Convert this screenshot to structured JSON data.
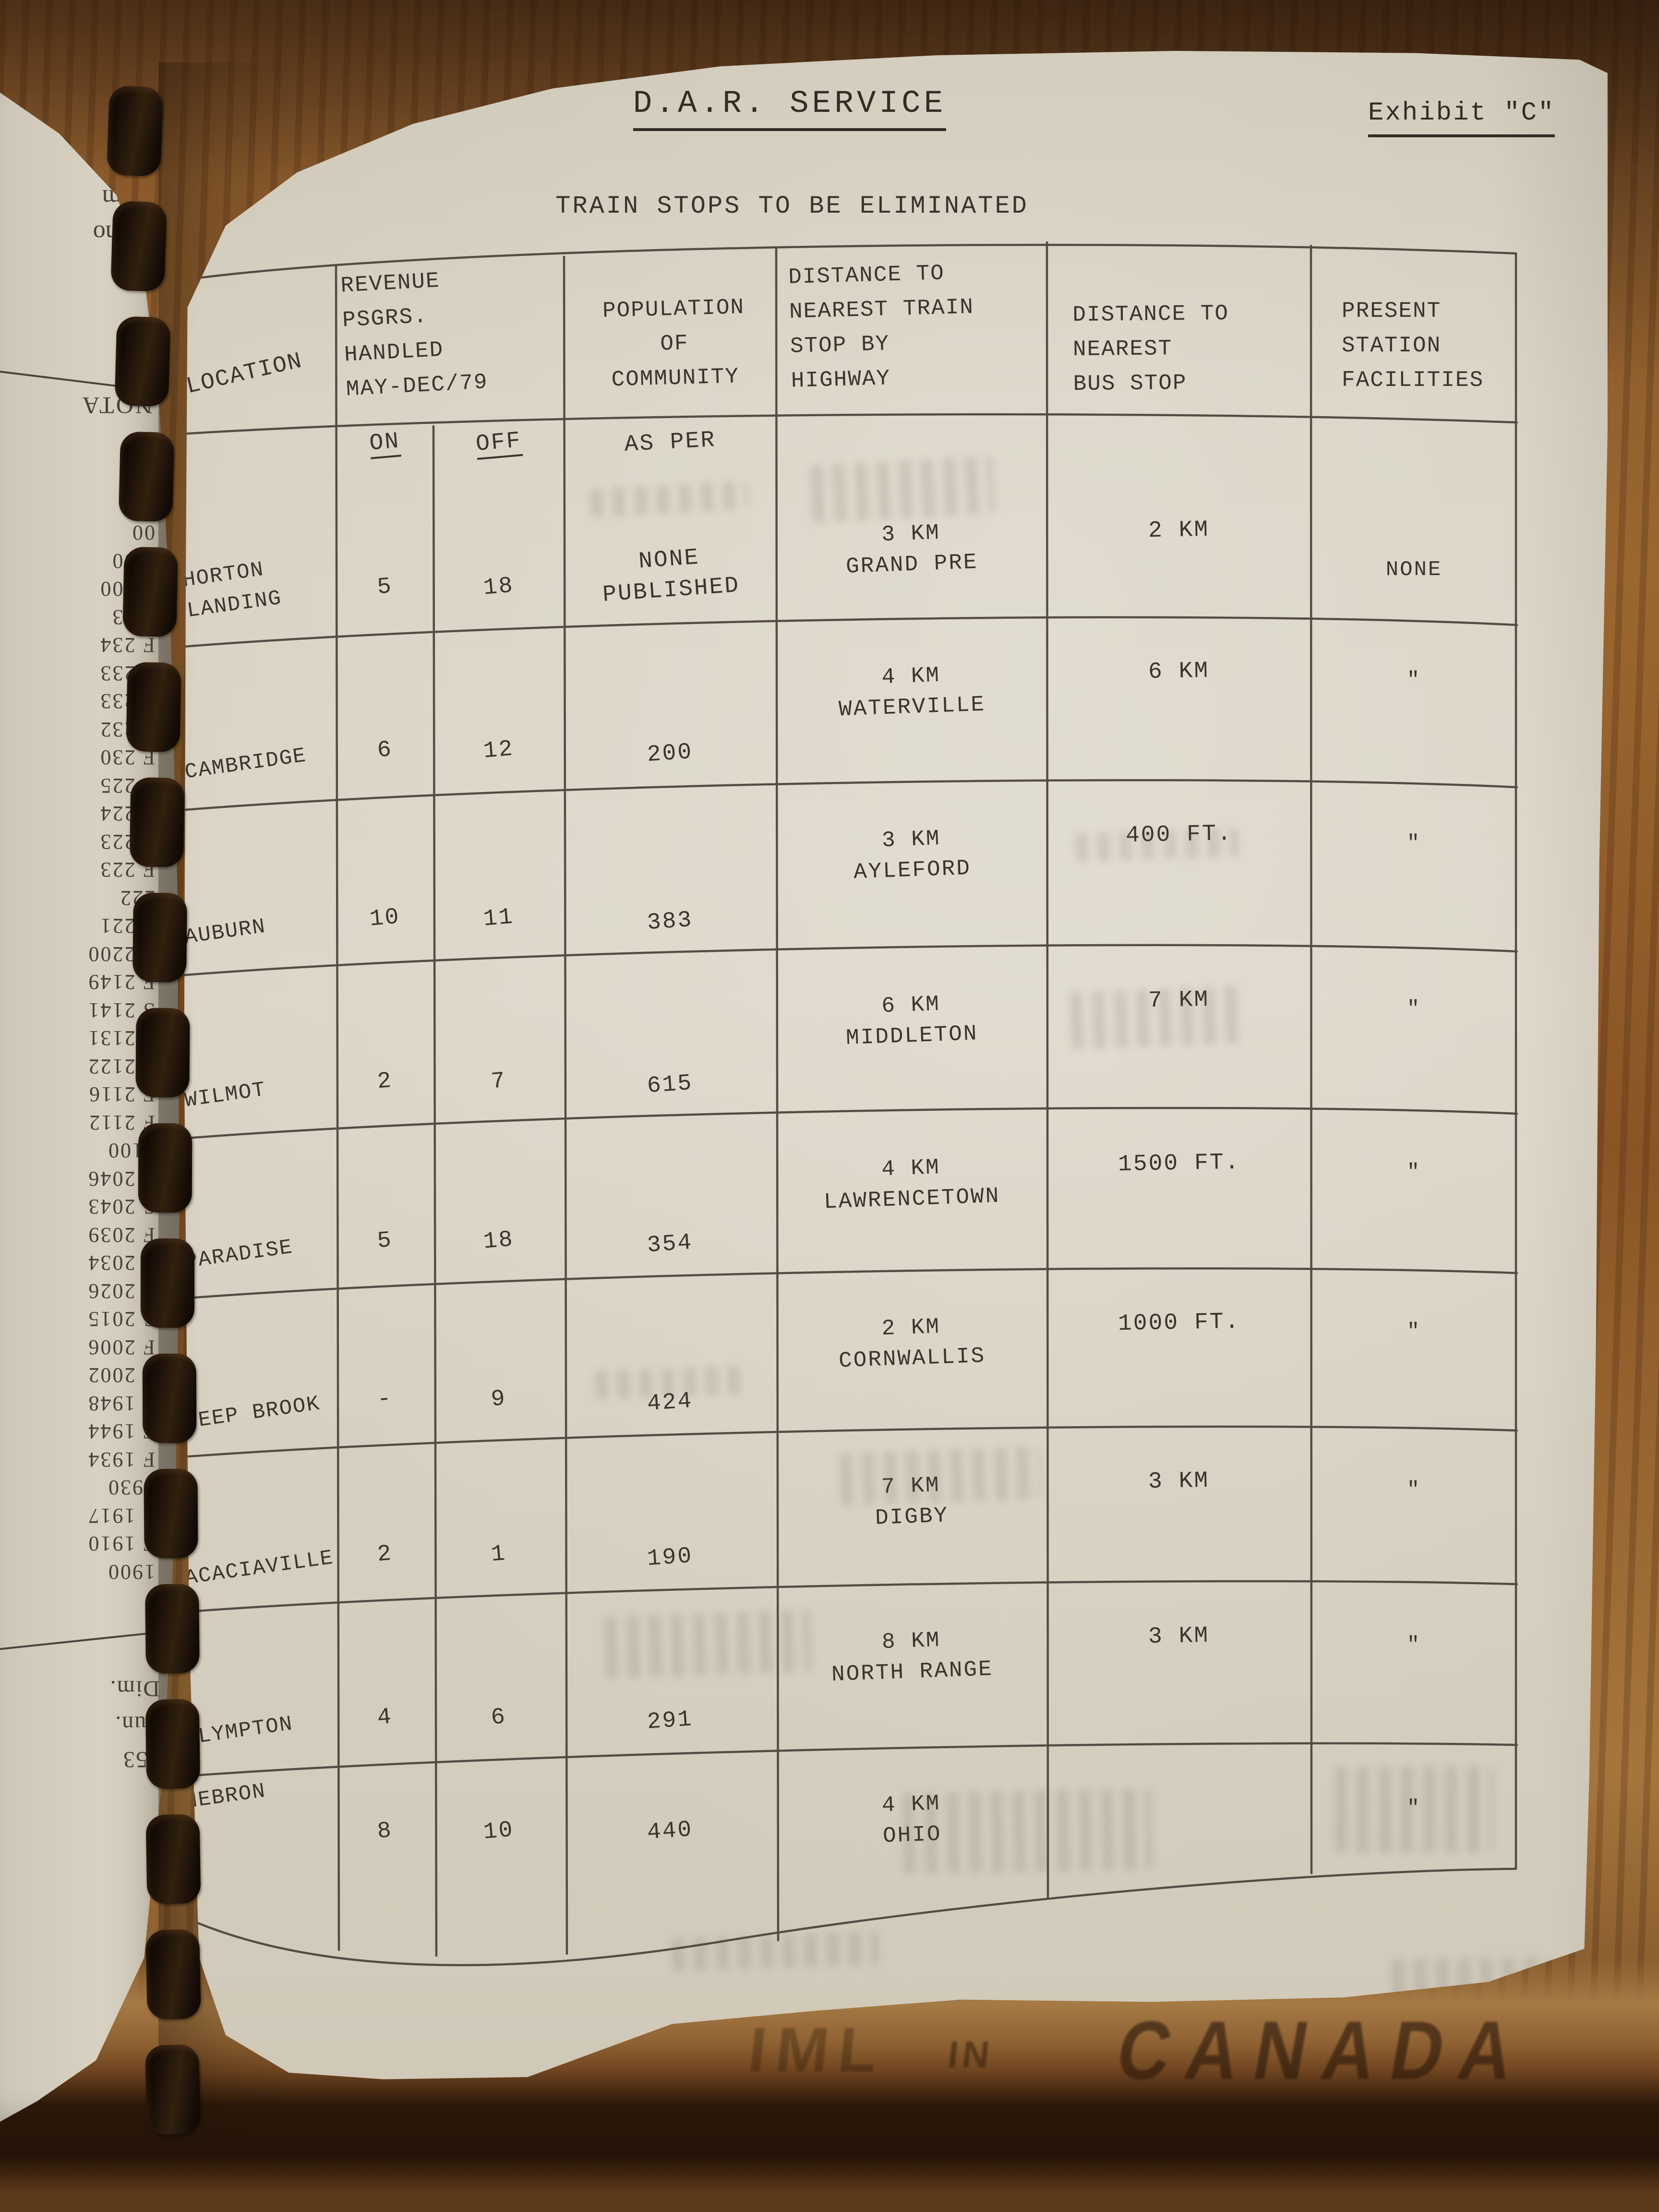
{
  "document": {
    "title": "D.A.R. SERVICE",
    "exhibit_label": "Exhibit \"C\"",
    "subtitle": "TRAIN STOPS TO BE ELIMINATED",
    "table": {
      "headers": {
        "location": "LOCATION",
        "revenue": "REVENUE\nPSGRS.\nHANDLED\nMAY-DEC/79",
        "population": "POPULATION\nOF\nCOMMUNITY",
        "train": "DISTANCE TO\nNEAREST TRAIN\nSTOP BY\nHIGHWAY",
        "bus": "DISTANCE TO\nNEAREST\nBUS STOP",
        "facilities": "PRESENT\nSTATION\nFACILITIES"
      },
      "subheaders": {
        "on": "ON",
        "off": "OFF",
        "population_note": "AS PER"
      },
      "rows": [
        {
          "location": "HORTON LANDING",
          "on": "5",
          "off": "18",
          "population": "NONE\nPUBLISHED",
          "train": "3 KM\nGRAND PRE",
          "bus": "2 KM",
          "facilities": "NONE"
        },
        {
          "location": "CAMBRIDGE",
          "on": "6",
          "off": "12",
          "population": "200",
          "train": "4 KM\nWATERVILLE",
          "bus": "6 KM",
          "facilities": "\""
        },
        {
          "location": "AUBURN",
          "on": "10",
          "off": "11",
          "population": "383",
          "train": "3 KM\nAYLEFORD",
          "bus": "400 FT.",
          "facilities": "\""
        },
        {
          "location": "WILMOT",
          "on": "2",
          "off": "7",
          "population": "615",
          "train": "6 KM\nMIDDLETON",
          "bus": "7 KM",
          "facilities": "\""
        },
        {
          "location": "PARADISE",
          "on": "5",
          "off": "18",
          "population": "354",
          "train": "4 KM\nLAWRENCETOWN",
          "bus": "1500 FT.",
          "facilities": "\""
        },
        {
          "location": "DEEP BROOK",
          "on": "-",
          "off": "9",
          "population": "424",
          "train": "2 KM\nCORNWALLIS",
          "bus": "1000 FT.",
          "facilities": "\""
        },
        {
          "location": "ACACIAVILLE",
          "on": "2",
          "off": "1",
          "population": "190",
          "train": "7 KM\nDIGBY",
          "bus": "3 KM",
          "facilities": "\""
        },
        {
          "location": "PLYMPTON",
          "on": "4",
          "off": "6",
          "population": "291",
          "train": "8 KM\nNORTH RANGE",
          "bus": "3 KM",
          "facilities": "\""
        },
        {
          "location": "HEBRON",
          "on": "8",
          "off": "10",
          "population": "440",
          "train": "4 KM\nOHIO",
          "bus": "",
          "facilities": "\""
        }
      ]
    }
  },
  "left_page": {
    "top_lines": [
      "24 m",
      "Mono"
    ],
    "heading": "NOTA",
    "numbers": [
      "00",
      "F 00",
      "F 000",
      "F 23",
      "F 234",
      "F 233",
      "F 233",
      "F 232",
      "F 230",
      "S 225",
      "F 224",
      "F 223",
      "F 223",
      "222",
      "F 221",
      "F 2200",
      "F 2149",
      "S 2141",
      "F 2131",
      "F 2122",
      "F 2116",
      "F 2112",
      "2100",
      "F 2046",
      "S 2043",
      "F 2039",
      "F 2034",
      "S 2026",
      "S 2015",
      "F 2006",
      "F 2002",
      "F 1948",
      "F 1944",
      "F 1934",
      "1930",
      "F 1917",
      "F 1910",
      "1900"
    ],
    "footer": [
      "Dim.",
      "Sun.",
      "153"
    ]
  },
  "wood": {
    "stamp_partial": "IML",
    "stamp_in": "IN",
    "stamp_canada": "CANADA"
  },
  "colors": {
    "paper": "#d8d1c2",
    "ink": "#3c342c",
    "grid": "#49413a",
    "wood": "#8f5d2d",
    "wood_dark": "#3a2212",
    "binding": "#1d120b"
  }
}
